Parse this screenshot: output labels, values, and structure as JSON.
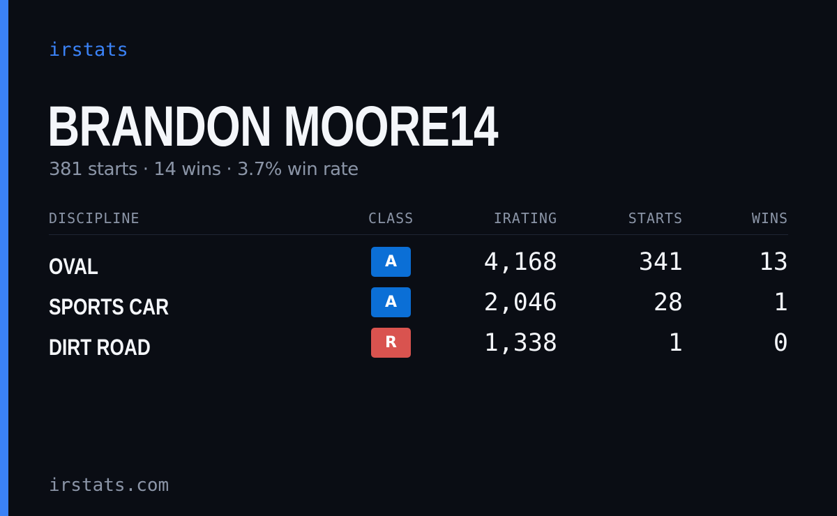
{
  "brand": "irstats",
  "driver": {
    "name": "BRANDON MOORE14",
    "summary": "381 starts · 14 wins · 3.7% win rate"
  },
  "table": {
    "headers": {
      "discipline": "DISCIPLINE",
      "class": "CLASS",
      "irating": "IRATING",
      "starts": "STARTS",
      "wins": "WINS"
    },
    "rows": [
      {
        "discipline": "OVAL",
        "class": "A",
        "class_color": "#0b6fd6",
        "irating": "4,168",
        "starts": "341",
        "wins": "13"
      },
      {
        "discipline": "SPORTS CAR",
        "class": "A",
        "class_color": "#0b6fd6",
        "irating": "2,046",
        "starts": "28",
        "wins": "1"
      },
      {
        "discipline": "DIRT ROAD",
        "class": "R",
        "class_color": "#d9534f",
        "irating": "1,338",
        "starts": "1",
        "wins": "0"
      }
    ]
  },
  "footer": "irstats.com",
  "colors": {
    "accent": "#3b82f6",
    "background": "#0a0d14",
    "muted_text": "#8b95a7"
  }
}
